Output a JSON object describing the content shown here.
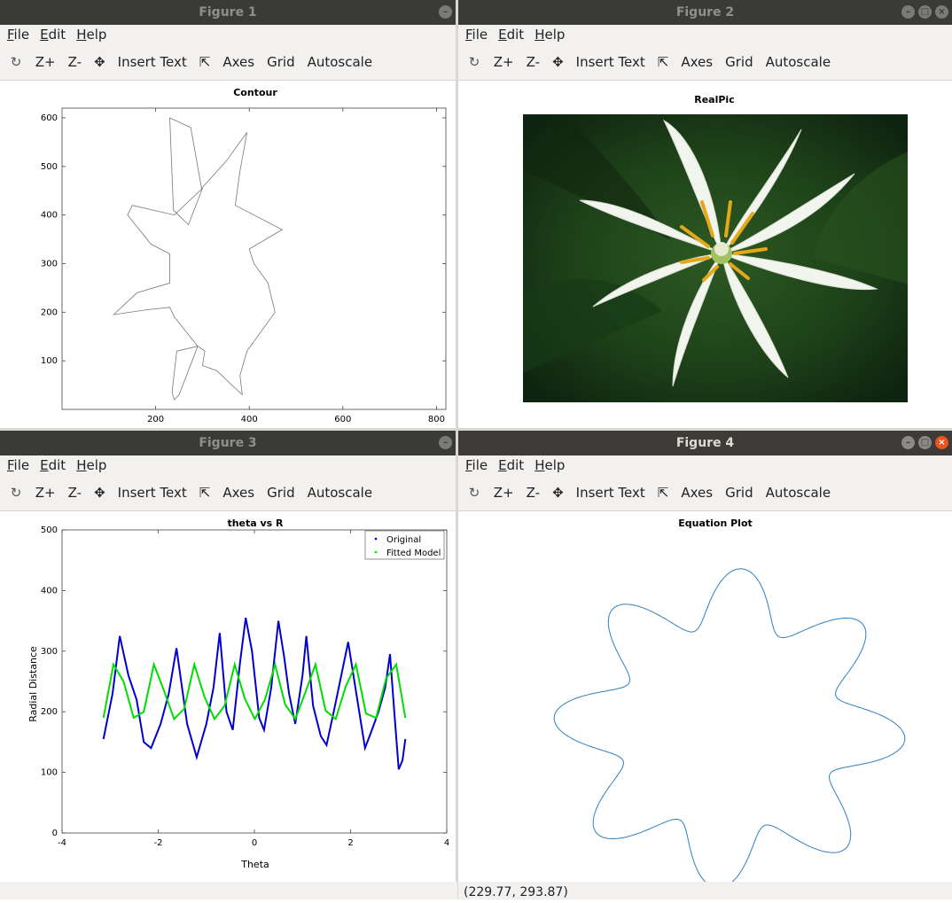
{
  "menu": [
    "File",
    "Edit",
    "Help"
  ],
  "toolbar": {
    "zoom_in": "Z+",
    "zoom_out": "Z-",
    "insert_text": "Insert Text",
    "axes": "Axes",
    "grid": "Grid",
    "autoscale": "Autoscale"
  },
  "windows": [
    {
      "title": "Figure 1",
      "active": false
    },
    {
      "title": "Figure 2",
      "active": false
    },
    {
      "title": "Figure 3",
      "active": false
    },
    {
      "title": "Figure 4",
      "active": true
    }
  ],
  "status": {
    "coords": "(229.77, 293.87)"
  },
  "chart_data": [
    {
      "type": "line",
      "title": "Contour",
      "xlabel": "",
      "ylabel": "",
      "xlim": [
        0,
        820
      ],
      "ylim": [
        0,
        620
      ],
      "xticks": [
        200,
        400,
        600,
        800
      ],
      "yticks": [
        100,
        200,
        300,
        400,
        500,
        600
      ],
      "color": "#777777",
      "contour": [
        [
          300,
          455
        ],
        [
          270,
          380
        ],
        [
          238,
          410
        ],
        [
          230,
          600
        ],
        [
          275,
          580
        ],
        [
          298,
          455
        ],
        [
          350,
          510
        ],
        [
          395,
          570
        ],
        [
          380,
          490
        ],
        [
          370,
          420
        ],
        [
          470,
          370
        ],
        [
          400,
          330
        ],
        [
          410,
          300
        ],
        [
          440,
          260
        ],
        [
          455,
          200
        ],
        [
          395,
          120
        ],
        [
          380,
          70
        ],
        [
          385,
          30
        ],
        [
          330,
          80
        ],
        [
          300,
          90
        ],
        [
          305,
          120
        ],
        [
          290,
          130
        ],
        [
          245,
          120
        ],
        [
          235,
          35
        ],
        [
          240,
          20
        ],
        [
          250,
          30
        ],
        [
          290,
          130
        ],
        [
          240,
          190
        ],
        [
          230,
          210
        ],
        [
          180,
          205
        ],
        [
          110,
          195
        ],
        [
          160,
          240
        ],
        [
          230,
          260
        ],
        [
          230,
          320
        ],
        [
          190,
          340
        ],
        [
          140,
          400
        ],
        [
          150,
          420
        ],
        [
          240,
          400
        ],
        [
          300,
          455
        ]
      ]
    },
    {
      "type": "image",
      "title": "RealPic"
    },
    {
      "type": "scatter",
      "title": "theta vs R",
      "xlabel": "Theta",
      "ylabel": "Radial Distance",
      "xlim": [
        -4,
        4
      ],
      "ylim": [
        0,
        500
      ],
      "xticks": [
        -4,
        -2,
        0,
        2,
        4
      ],
      "yticks": [
        0,
        100,
        200,
        300,
        400,
        500
      ],
      "legend_position": "top-right",
      "series": [
        {
          "name": "Original",
          "color": "#0000cc",
          "x": [
            -3.14,
            -2.95,
            -2.8,
            -2.62,
            -2.45,
            -2.3,
            -2.15,
            -1.95,
            -1.78,
            -1.62,
            -1.4,
            -1.2,
            -1.0,
            -0.85,
            -0.72,
            -0.58,
            -0.45,
            -0.3,
            -0.18,
            -0.05,
            0.1,
            0.2,
            0.35,
            0.5,
            0.62,
            0.72,
            0.85,
            1.0,
            1.08,
            1.22,
            1.38,
            1.5,
            1.65,
            1.78,
            1.95,
            2.12,
            2.3,
            2.42,
            2.58,
            2.72,
            2.82,
            2.9,
            3.0,
            3.08,
            3.14
          ],
          "y": [
            155,
            230,
            325,
            260,
            220,
            150,
            140,
            180,
            230,
            305,
            180,
            125,
            180,
            240,
            330,
            200,
            170,
            280,
            355,
            300,
            190,
            170,
            240,
            350,
            290,
            230,
            180,
            260,
            325,
            210,
            160,
            145,
            200,
            250,
            315,
            230,
            140,
            165,
            200,
            240,
            295,
            210,
            105,
            120,
            155
          ]
        },
        {
          "name": "Fitted Model",
          "color": "#00dd00",
          "x": [
            -3.14,
            -2.93,
            -2.72,
            -2.51,
            -2.3,
            -2.09,
            -1.88,
            -1.67,
            -1.46,
            -1.25,
            -1.04,
            -0.83,
            -0.62,
            -0.41,
            -0.2,
            0.01,
            0.22,
            0.43,
            0.64,
            0.85,
            1.06,
            1.27,
            1.48,
            1.69,
            1.9,
            2.11,
            2.32,
            2.53,
            2.74,
            2.95,
            3.14
          ],
          "y": [
            190,
            278,
            250,
            190,
            200,
            278,
            235,
            188,
            205,
            278,
            225,
            188,
            210,
            278,
            222,
            188,
            220,
            278,
            212,
            188,
            232,
            278,
            202,
            188,
            242,
            278,
            197,
            190,
            255,
            278,
            190
          ]
        }
      ]
    },
    {
      "type": "line",
      "title": "Equation Plot",
      "xlabel": "",
      "ylabel": "",
      "color": "#2f7fc1"
    }
  ]
}
